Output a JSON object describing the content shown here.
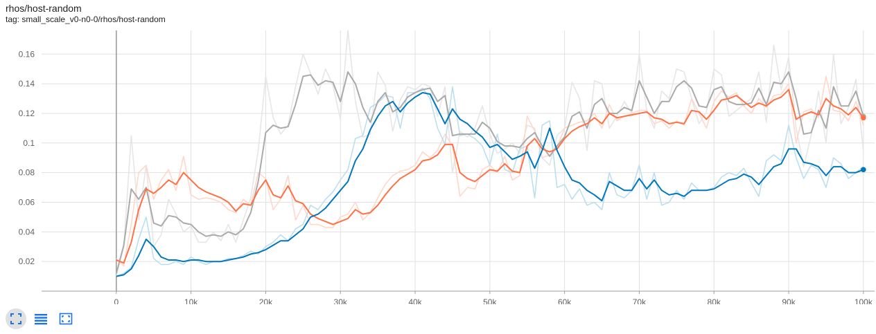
{
  "card": {
    "title": "rhos/host-random",
    "tag": "tag: small_scale_v0-n0-0/rhos/host-random"
  },
  "toolbar": {
    "buttons": [
      {
        "name": "fullscreen-button",
        "icon": "fullscreen-icon"
      },
      {
        "name": "toggle-log-scale-button",
        "icon": "list-lines-icon"
      },
      {
        "name": "fit-domain-button",
        "icon": "fit-to-data-icon"
      }
    ],
    "accent": "#1a73e8"
  },
  "chart_data": {
    "type": "line",
    "title": "",
    "xlabel": "",
    "ylabel": "",
    "xlim": [
      -10000,
      101500
    ],
    "ylim": [
      0,
      0.176
    ],
    "grid": true,
    "x_ticks": [
      0,
      10000,
      20000,
      30000,
      40000,
      50000,
      60000,
      70000,
      80000,
      90000,
      100000
    ],
    "x_tick_labels": [
      "0",
      "10k",
      "20k",
      "30k",
      "40k",
      "50k",
      "60k",
      "70k",
      "80k",
      "90k",
      "100k"
    ],
    "y_ticks": [
      0.02,
      0.04,
      0.06,
      0.08,
      0.1,
      0.12,
      0.14,
      0.16
    ],
    "y_tick_labels": [
      "0.02",
      "0.04",
      "0.06",
      "0.08",
      "0.1",
      "0.12",
      "0.14",
      "0.16"
    ],
    "series": [
      {
        "color": "#aaaaaa",
        "raw_color": "#e6e6e6",
        "x": [
          0,
          1000,
          2000,
          3000,
          4000,
          5000,
          6000,
          7000,
          8000,
          9000,
          10000,
          11000,
          12000,
          13000,
          14000,
          15000,
          16000,
          17000,
          18000,
          19000,
          20000,
          21000,
          22000,
          23000,
          24000,
          25000,
          26000,
          27000,
          28000,
          29000,
          30000,
          31000,
          32000,
          33000,
          34000,
          35000,
          36000,
          37000,
          38000,
          39000,
          40000,
          41000,
          42000,
          43000,
          44000,
          45000,
          46000,
          47000,
          48000,
          49000,
          50000,
          51000,
          52000,
          53000,
          54000,
          55000,
          56000,
          57000,
          58000,
          59000,
          60000,
          61000,
          62000,
          63000,
          64000,
          65000,
          66000,
          67000,
          68000,
          69000,
          70000,
          71000,
          72000,
          73000,
          74000,
          75000,
          76000,
          77000,
          78000,
          79000,
          80000,
          81000,
          82000,
          83000,
          84000,
          85000,
          86000,
          87000,
          88000,
          89000,
          90000,
          91000,
          92000,
          93000,
          94000,
          95000,
          96000,
          97000,
          98000,
          99000,
          100000
        ],
        "smoothed": [
          0.012,
          0.031,
          0.069,
          0.062,
          0.07,
          0.046,
          0.044,
          0.051,
          0.05,
          0.046,
          0.045,
          0.04,
          0.037,
          0.038,
          0.037,
          0.04,
          0.038,
          0.042,
          0.053,
          0.074,
          0.107,
          0.112,
          0.11,
          0.111,
          0.126,
          0.145,
          0.146,
          0.139,
          0.142,
          0.141,
          0.128,
          0.148,
          0.14,
          0.124,
          0.114,
          0.128,
          0.134,
          0.121,
          0.124,
          0.131,
          0.134,
          0.136,
          0.137,
          0.128,
          0.132,
          0.105,
          0.106,
          0.106,
          0.106,
          0.114,
          0.11,
          0.101,
          0.098,
          0.098,
          0.097,
          0.103,
          0.107,
          0.098,
          0.091,
          0.098,
          0.104,
          0.118,
          0.121,
          0.11,
          0.126,
          0.13,
          0.12,
          0.12,
          0.124,
          0.122,
          0.142,
          0.131,
          0.12,
          0.128,
          0.128,
          0.138,
          0.142,
          0.137,
          0.125,
          0.124,
          0.136,
          0.138,
          0.128,
          0.126,
          0.126,
          0.127,
          0.137,
          0.126,
          0.141,
          0.14,
          0.148,
          0.13,
          0.106,
          0.107,
          0.122,
          0.11,
          0.138,
          0.125,
          0.125,
          0.135,
          0.118
        ],
        "raw": [
          0.01,
          0.03,
          0.105,
          0.048,
          0.085,
          0.03,
          0.038,
          0.062,
          0.052,
          0.04,
          0.044,
          0.033,
          0.033,
          0.04,
          0.034,
          0.045,
          0.033,
          0.048,
          0.063,
          0.095,
          0.145,
          0.117,
          0.106,
          0.112,
          0.138,
          0.16,
          0.147,
          0.133,
          0.15,
          0.139,
          0.116,
          0.176,
          0.128,
          0.104,
          0.106,
          0.148,
          0.139,
          0.108,
          0.129,
          0.138,
          0.136,
          0.14,
          0.138,
          0.118,
          0.138,
          0.08,
          0.108,
          0.104,
          0.11,
          0.125,
          0.106,
          0.093,
          0.096,
          0.1,
          0.093,
          0.112,
          0.11,
          0.09,
          0.085,
          0.105,
          0.11,
          0.141,
          0.13,
          0.095,
          0.142,
          0.14,
          0.11,
          0.118,
          0.128,
          0.12,
          0.16,
          0.122,
          0.11,
          0.135,
          0.13,
          0.15,
          0.148,
          0.13,
          0.113,
          0.121,
          0.15,
          0.146,
          0.118,
          0.122,
          0.126,
          0.13,
          0.148,
          0.114,
          0.166,
          0.136,
          0.158,
          0.11,
          0.084,
          0.105,
          0.135,
          0.1,
          0.16,
          0.113,
          0.124,
          0.143,
          0.095
        ]
      },
      {
        "color": "#ff7043",
        "raw_color": "#ffd7cb",
        "x": [
          0,
          1000,
          2000,
          3000,
          4000,
          5000,
          6000,
          7000,
          8000,
          9000,
          10000,
          11000,
          12000,
          13000,
          14000,
          15000,
          16000,
          17000,
          18000,
          19000,
          20000,
          21000,
          22000,
          23000,
          24000,
          25000,
          26000,
          27000,
          28000,
          29000,
          30000,
          31000,
          32000,
          33000,
          34000,
          35000,
          36000,
          37000,
          38000,
          39000,
          40000,
          41000,
          42000,
          43000,
          44000,
          45000,
          46000,
          47000,
          48000,
          49000,
          50000,
          51000,
          52000,
          53000,
          54000,
          55000,
          56000,
          57000,
          58000,
          59000,
          60000,
          61000,
          62000,
          63000,
          64000,
          65000,
          66000,
          67000,
          68000,
          69000,
          70000,
          71000,
          72000,
          73000,
          74000,
          75000,
          76000,
          77000,
          78000,
          79000,
          80000,
          81000,
          82000,
          83000,
          84000,
          85000,
          86000,
          87000,
          88000,
          89000,
          90000,
          91000,
          92000,
          93000,
          94000,
          95000,
          96000,
          97000,
          98000,
          99000,
          100000
        ],
        "smoothed": [
          0.021,
          0.019,
          0.033,
          0.055,
          0.069,
          0.066,
          0.07,
          0.075,
          0.072,
          0.08,
          0.075,
          0.07,
          0.067,
          0.065,
          0.063,
          0.06,
          0.054,
          0.059,
          0.058,
          0.068,
          0.075,
          0.065,
          0.063,
          0.071,
          0.061,
          0.059,
          0.052,
          0.049,
          0.047,
          0.045,
          0.047,
          0.049,
          0.055,
          0.052,
          0.053,
          0.058,
          0.065,
          0.071,
          0.076,
          0.079,
          0.082,
          0.088,
          0.089,
          0.092,
          0.099,
          0.099,
          0.08,
          0.076,
          0.074,
          0.078,
          0.082,
          0.081,
          0.086,
          0.081,
          0.08,
          0.098,
          0.103,
          0.096,
          0.094,
          0.096,
          0.103,
          0.108,
          0.111,
          0.113,
          0.117,
          0.113,
          0.12,
          0.117,
          0.118,
          0.119,
          0.12,
          0.121,
          0.117,
          0.116,
          0.113,
          0.114,
          0.113,
          0.122,
          0.121,
          0.116,
          0.122,
          0.129,
          0.13,
          0.132,
          0.128,
          0.124,
          0.127,
          0.125,
          0.129,
          0.131,
          0.136,
          0.116,
          0.119,
          0.121,
          0.119,
          0.13,
          0.125,
          0.123,
          0.119,
          0.124,
          0.117
        ],
        "raw": [
          0.022,
          0.017,
          0.045,
          0.08,
          0.085,
          0.062,
          0.075,
          0.082,
          0.068,
          0.091,
          0.065,
          0.062,
          0.063,
          0.062,
          0.06,
          0.055,
          0.053,
          0.062,
          0.058,
          0.08,
          0.076,
          0.055,
          0.062,
          0.078,
          0.048,
          0.058,
          0.045,
          0.045,
          0.043,
          0.043,
          0.05,
          0.052,
          0.06,
          0.048,
          0.053,
          0.063,
          0.072,
          0.078,
          0.081,
          0.082,
          0.085,
          0.094,
          0.09,
          0.095,
          0.106,
          0.098,
          0.064,
          0.07,
          0.069,
          0.082,
          0.085,
          0.08,
          0.091,
          0.075,
          0.078,
          0.118,
          0.108,
          0.09,
          0.092,
          0.097,
          0.11,
          0.112,
          0.114,
          0.115,
          0.12,
          0.11,
          0.126,
          0.115,
          0.118,
          0.12,
          0.122,
          0.122,
          0.113,
          0.115,
          0.11,
          0.115,
          0.112,
          0.13,
          0.12,
          0.11,
          0.128,
          0.135,
          0.131,
          0.134,
          0.125,
          0.12,
          0.13,
          0.124,
          0.132,
          0.133,
          0.14,
          0.1,
          0.121,
          0.123,
          0.117,
          0.145,
          0.122,
          0.121,
          0.115,
          0.128,
          0.112
        ]
      },
      {
        "color": "#0077bb",
        "raw_color": "#bcdfef",
        "x": [
          0,
          1000,
          2000,
          3000,
          4000,
          5000,
          6000,
          7000,
          8000,
          9000,
          10000,
          11000,
          12000,
          13000,
          14000,
          15000,
          16000,
          17000,
          18000,
          19000,
          20000,
          21000,
          22000,
          23000,
          24000,
          25000,
          26000,
          27000,
          28000,
          29000,
          30000,
          31000,
          32000,
          33000,
          34000,
          35000,
          36000,
          37000,
          38000,
          39000,
          40000,
          41000,
          42000,
          43000,
          44000,
          45000,
          46000,
          47000,
          48000,
          49000,
          50000,
          51000,
          52000,
          53000,
          54000,
          55000,
          56000,
          57000,
          58000,
          59000,
          60000,
          61000,
          62000,
          63000,
          64000,
          65000,
          66000,
          67000,
          68000,
          69000,
          70000,
          71000,
          72000,
          73000,
          74000,
          75000,
          76000,
          77000,
          78000,
          79000,
          80000,
          81000,
          82000,
          83000,
          84000,
          85000,
          86000,
          87000,
          88000,
          89000,
          90000,
          91000,
          92000,
          93000,
          94000,
          95000,
          96000,
          97000,
          98000,
          99000,
          100000
        ],
        "smoothed": [
          0.01,
          0.011,
          0.015,
          0.024,
          0.035,
          0.03,
          0.023,
          0.021,
          0.021,
          0.02,
          0.021,
          0.021,
          0.02,
          0.02,
          0.02,
          0.021,
          0.022,
          0.023,
          0.025,
          0.026,
          0.028,
          0.031,
          0.034,
          0.034,
          0.038,
          0.042,
          0.05,
          0.052,
          0.056,
          0.062,
          0.068,
          0.074,
          0.088,
          0.096,
          0.109,
          0.118,
          0.125,
          0.128,
          0.121,
          0.127,
          0.131,
          0.134,
          0.133,
          0.123,
          0.113,
          0.123,
          0.116,
          0.113,
          0.108,
          0.104,
          0.097,
          0.099,
          0.094,
          0.089,
          0.091,
          0.094,
          0.083,
          0.095,
          0.11,
          0.095,
          0.084,
          0.075,
          0.073,
          0.068,
          0.065,
          0.061,
          0.074,
          0.071,
          0.068,
          0.068,
          0.076,
          0.069,
          0.075,
          0.068,
          0.065,
          0.066,
          0.064,
          0.068,
          0.068,
          0.068,
          0.069,
          0.072,
          0.075,
          0.076,
          0.079,
          0.077,
          0.072,
          0.078,
          0.084,
          0.086,
          0.096,
          0.096,
          0.087,
          0.086,
          0.084,
          0.078,
          0.084,
          0.084,
          0.08,
          0.08,
          0.082
        ],
        "raw": [
          0.01,
          0.012,
          0.016,
          0.035,
          0.05,
          0.022,
          0.018,
          0.018,
          0.02,
          0.018,
          0.023,
          0.02,
          0.018,
          0.02,
          0.02,
          0.022,
          0.022,
          0.024,
          0.027,
          0.025,
          0.03,
          0.033,
          0.038,
          0.034,
          0.042,
          0.045,
          0.058,
          0.055,
          0.062,
          0.067,
          0.075,
          0.082,
          0.103,
          0.105,
          0.124,
          0.127,
          0.132,
          0.131,
          0.11,
          0.134,
          0.134,
          0.137,
          0.13,
          0.11,
          0.099,
          0.138,
          0.105,
          0.106,
          0.103,
          0.098,
          0.085,
          0.106,
          0.082,
          0.08,
          0.096,
          0.098,
          0.063,
          0.112,
          0.115,
          0.07,
          0.072,
          0.062,
          0.069,
          0.058,
          0.06,
          0.055,
          0.08,
          0.065,
          0.063,
          0.068,
          0.085,
          0.062,
          0.08,
          0.058,
          0.06,
          0.068,
          0.062,
          0.073,
          0.068,
          0.068,
          0.07,
          0.077,
          0.08,
          0.078,
          0.083,
          0.073,
          0.064,
          0.088,
          0.092,
          0.088,
          0.112,
          0.09,
          0.076,
          0.085,
          0.082,
          0.07,
          0.09,
          0.086,
          0.076,
          0.08,
          0.084
        ]
      }
    ]
  }
}
